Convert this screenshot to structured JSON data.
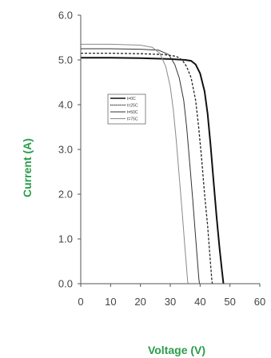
{
  "chart_data": {
    "type": "line",
    "xlabel": "Voltage (V)",
    "ylabel": "Current (A)",
    "xlim": [
      0,
      60
    ],
    "ylim": [
      0,
      6
    ],
    "xticks": [
      "0",
      "10",
      "20",
      "30",
      "40",
      "50",
      "60"
    ],
    "yticks": [
      "0.0",
      "1.0",
      "2.0",
      "3.0",
      "4.0",
      "5.0",
      "6.0"
    ],
    "grid": false,
    "legend_position": "center-left",
    "axis_title_color": "#2a9d4a",
    "series": [
      {
        "name": "t=0C",
        "color": "#111111",
        "dash": "solid",
        "width": 2,
        "points": [
          [
            0,
            5.05
          ],
          [
            10,
            5.05
          ],
          [
            20,
            5.04
          ],
          [
            30,
            5.02
          ],
          [
            35,
            5.0
          ],
          [
            37,
            4.98
          ],
          [
            38.5,
            4.9
          ],
          [
            40,
            4.7
          ],
          [
            41.5,
            4.3
          ],
          [
            42.5,
            3.8
          ],
          [
            43.5,
            3.1
          ],
          [
            44.5,
            2.3
          ],
          [
            45.5,
            1.5
          ],
          [
            46.5,
            0.8
          ],
          [
            47.3,
            0.3
          ],
          [
            47.8,
            0.0
          ]
        ]
      },
      {
        "name": "t=25C",
        "color": "#222222",
        "dash": "3,2",
        "width": 1.3,
        "points": [
          [
            0,
            5.15
          ],
          [
            10,
            5.15
          ],
          [
            20,
            5.14
          ],
          [
            28,
            5.12
          ],
          [
            32,
            5.08
          ],
          [
            34,
            5.0
          ],
          [
            35.5,
            4.85
          ],
          [
            37,
            4.6
          ],
          [
            38.5,
            4.1
          ],
          [
            39.5,
            3.5
          ],
          [
            40.5,
            2.8
          ],
          [
            41.5,
            2.0
          ],
          [
            42.5,
            1.3
          ],
          [
            43.3,
            0.6
          ],
          [
            43.9,
            0.1
          ],
          [
            44.1,
            0.0
          ]
        ]
      },
      {
        "name": "t=50C",
        "color": "#333333",
        "dash": "solid",
        "width": 1,
        "points": [
          [
            0,
            5.25
          ],
          [
            10,
            5.25
          ],
          [
            20,
            5.24
          ],
          [
            26,
            5.22
          ],
          [
            29.5,
            5.12
          ],
          [
            31.5,
            4.9
          ],
          [
            33,
            4.6
          ],
          [
            34.5,
            4.1
          ],
          [
            35.5,
            3.5
          ],
          [
            36.5,
            2.7
          ],
          [
            37.5,
            1.9
          ],
          [
            38.3,
            1.2
          ],
          [
            39,
            0.6
          ],
          [
            39.6,
            0.1
          ],
          [
            39.8,
            0.0
          ]
        ]
      },
      {
        "name": "t=75C",
        "color": "#8a8a8a",
        "dash": "solid",
        "width": 1,
        "points": [
          [
            0,
            5.35
          ],
          [
            10,
            5.35
          ],
          [
            20,
            5.33
          ],
          [
            24,
            5.28
          ],
          [
            26.5,
            5.15
          ],
          [
            28.5,
            4.85
          ],
          [
            30,
            4.4
          ],
          [
            31,
            3.9
          ],
          [
            32,
            3.2
          ],
          [
            33,
            2.4
          ],
          [
            34,
            1.6
          ],
          [
            34.8,
            0.9
          ],
          [
            35.4,
            0.4
          ],
          [
            35.8,
            0.05
          ],
          [
            36,
            0.0
          ]
        ]
      }
    ]
  }
}
